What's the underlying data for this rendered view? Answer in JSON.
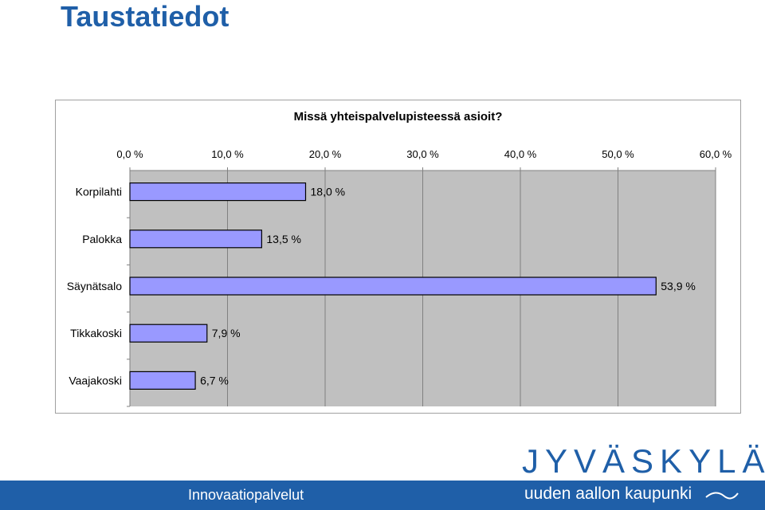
{
  "page": {
    "title": "Taustatiedot"
  },
  "chart_data": {
    "type": "bar",
    "orientation": "horizontal",
    "title": "Missä yhteispalvelupisteessä asioit?",
    "categories": [
      "Korpilahti",
      "Palokka",
      "Säynätsalo",
      "Tikkakoski",
      "Vaajakoski"
    ],
    "values": [
      18.0,
      13.5,
      53.9,
      7.9,
      6.7
    ],
    "value_labels": [
      "18,0 %",
      "13,5 %",
      "53,9 %",
      "7,9 %",
      "6,7 %"
    ],
    "xlim": [
      0,
      60
    ],
    "ticks": [
      0,
      10,
      20,
      30,
      40,
      50,
      60
    ],
    "tick_labels": [
      "0,0 %",
      "10,0 %",
      "20,0 %",
      "30,0 %",
      "40,0 %",
      "50,0 %",
      "60,0 %"
    ],
    "axis_position": "top",
    "grid": true,
    "legend": false,
    "colors": {
      "bar": "#9999ff",
      "plot_bg": "#c0c0c0",
      "grid": "#808080"
    }
  },
  "footer": {
    "text": "Innovaatiopalvelut"
  },
  "logo": {
    "wordmark": "JYVÄSKYLÄ",
    "tagline": "uuden aallon kaupunki"
  }
}
